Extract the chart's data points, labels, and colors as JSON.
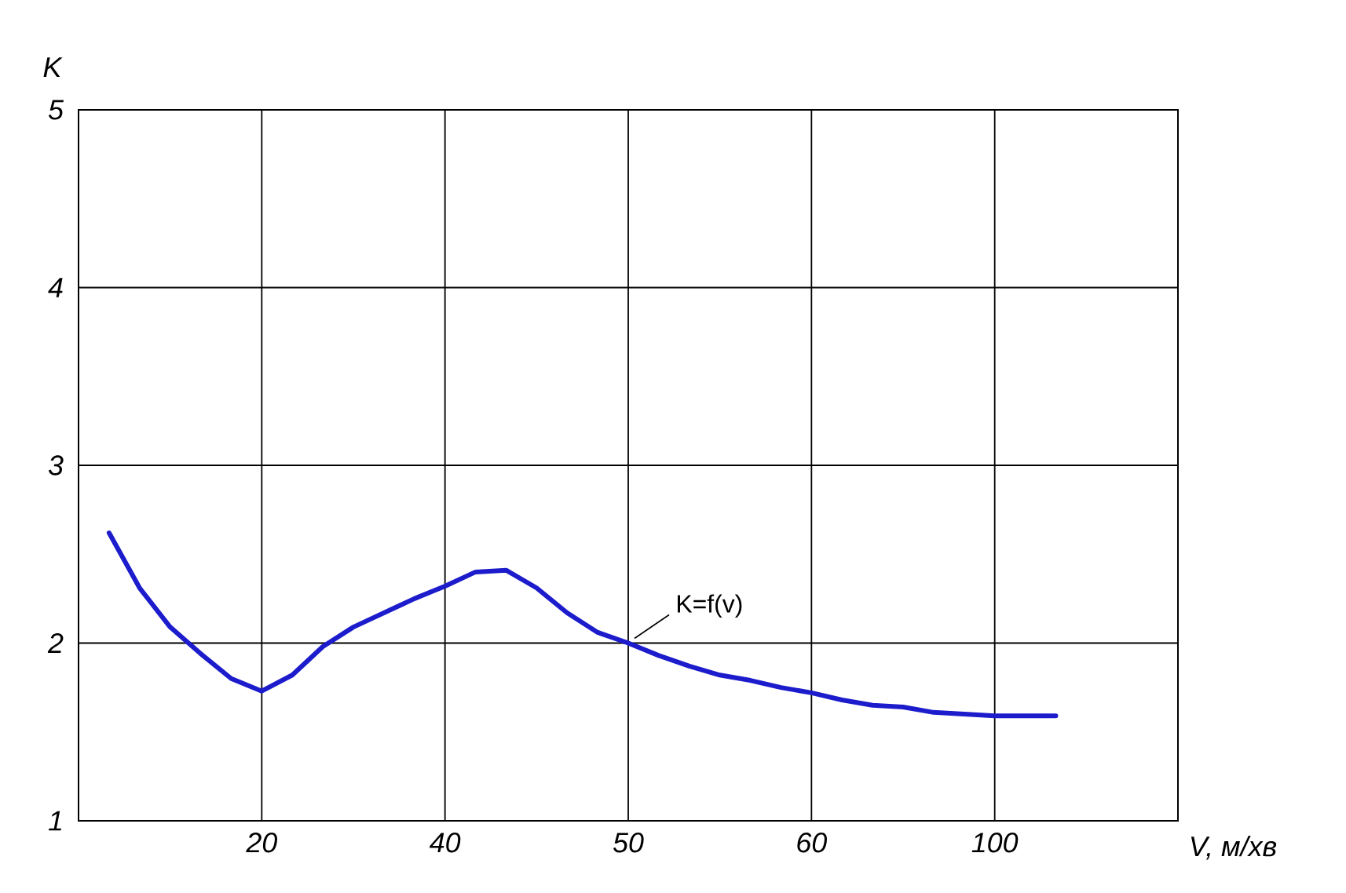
{
  "chart_data": {
    "type": "line",
    "xlabel": "V, м/хв",
    "ylabel": "K",
    "categories": [
      null,
      null,
      null,
      null,
      null,
      null,
      "20",
      null,
      null,
      null,
      null,
      null,
      "40",
      null,
      null,
      null,
      null,
      null,
      "50",
      null,
      null,
      null,
      null,
      null,
      "60",
      null,
      null,
      null,
      null,
      null,
      "100",
      null,
      null,
      null,
      null,
      null,
      null
    ],
    "series": [
      {
        "color": "#1c1ccc",
        "values": [
          null,
          2.62,
          2.31,
          2.09,
          1.94,
          1.8,
          1.73,
          1.82,
          1.98,
          2.09,
          2.17,
          2.25,
          2.32,
          2.4,
          2.41,
          2.31,
          2.17,
          2.06,
          2.0,
          1.93,
          1.87,
          1.82,
          1.79,
          1.75,
          1.72,
          1.68,
          1.65,
          1.64,
          1.61,
          1.6,
          1.59,
          1.59,
          1.59,
          null,
          null,
          null,
          null
        ]
      }
    ],
    "ylim": [
      1,
      5
    ],
    "yticks": [
      1,
      2,
      3,
      4,
      5
    ],
    "grid": true,
    "annotations": [
      {
        "text": "K=f(v)",
        "x": "50",
        "y": 2.0
      }
    ]
  }
}
